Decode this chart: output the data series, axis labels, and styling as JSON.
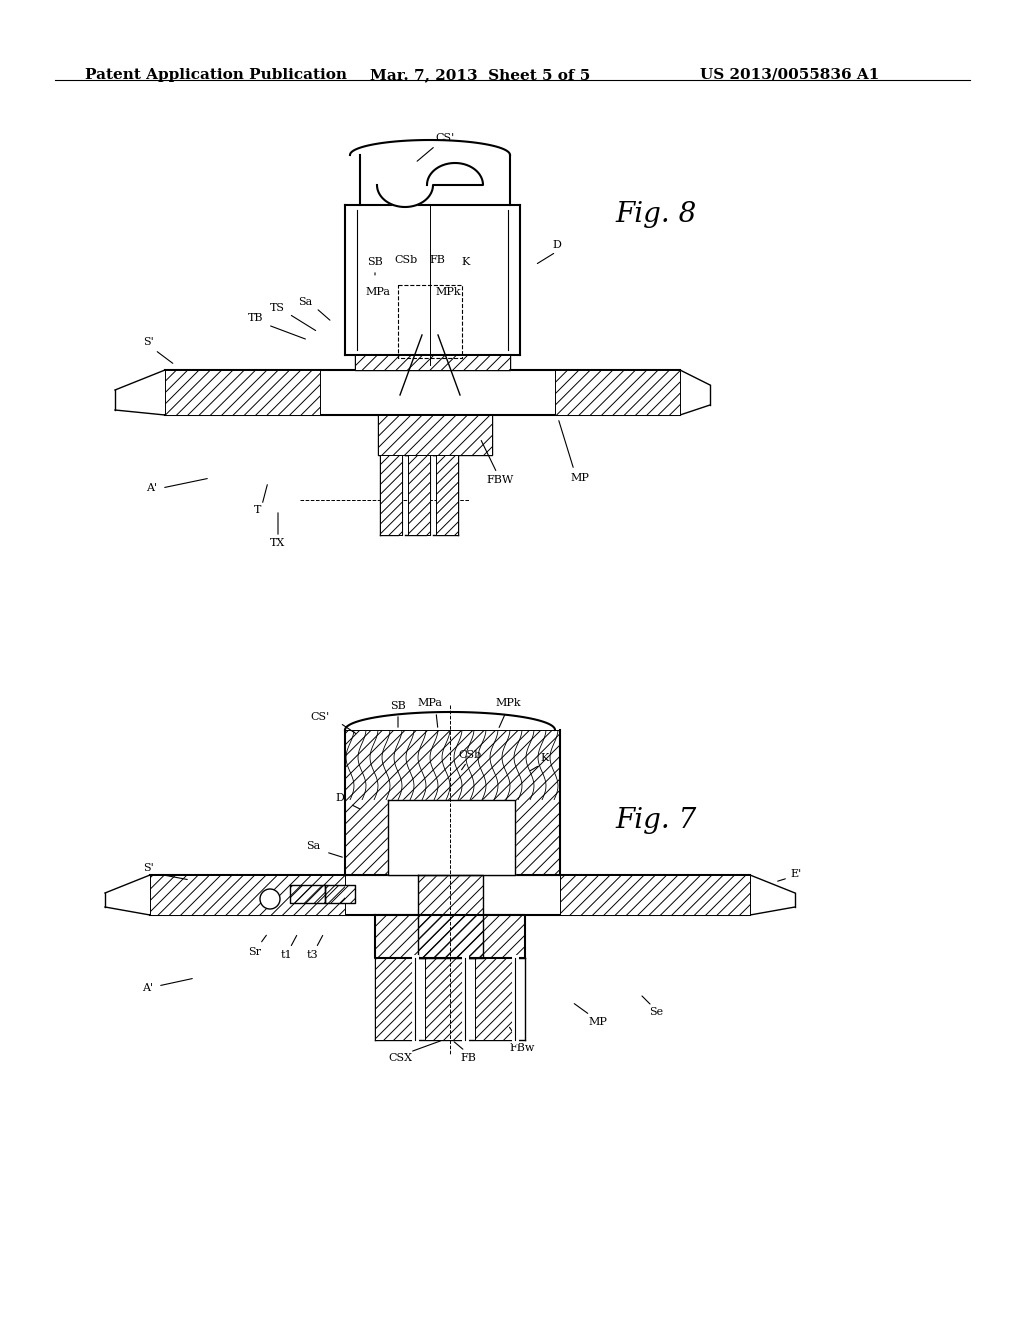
{
  "background_color": "#ffffff",
  "header_left": "Patent Application Publication",
  "header_mid": "Mar. 7, 2013  Sheet 5 of 5",
  "header_right": "US 2013/0055836 A1",
  "fig8_label": "Fig. 8",
  "fig7_label": "Fig. 7",
  "line_color": "#000000",
  "font_size_header": 11,
  "font_size_label": 8,
  "font_size_fig": 14
}
